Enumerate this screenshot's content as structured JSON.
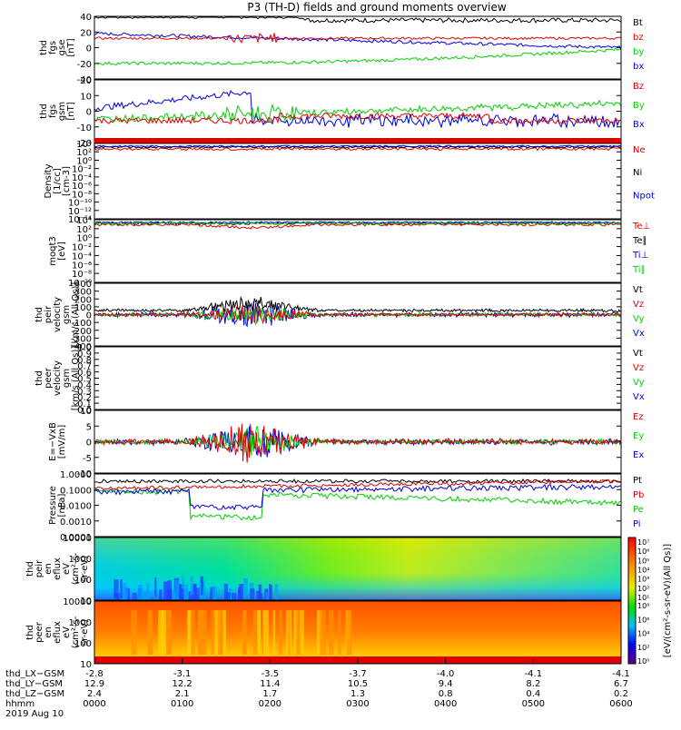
{
  "title": "P3 (TH-D) fields and ground moments overview",
  "colors": {
    "black": "#000000",
    "red": "#e00000",
    "green": "#00d000",
    "blue": "#0000e0"
  },
  "panels": [
    {
      "ylabel": [
        "thd",
        "fgs",
        "gse",
        "[nT]"
      ],
      "ticks": [
        "40",
        "20",
        "0",
        "-20",
        "-40"
      ],
      "ylim": [
        -40,
        40
      ],
      "legend": [
        {
          "label": "Bt",
          "color": "black"
        },
        {
          "label": "bz",
          "color": "red"
        },
        {
          "label": "by",
          "color": "green"
        },
        {
          "label": "bx",
          "color": "blue"
        }
      ]
    },
    {
      "ylabel": [
        "thd",
        "fgs",
        "gsm",
        "[nT]"
      ],
      "ticks": [
        "20",
        "10",
        "0",
        "-10",
        "-20"
      ],
      "ylim": [
        -20,
        20
      ],
      "legend": [
        {
          "label": "Bz",
          "color": "red"
        },
        {
          "label": "By",
          "color": "green"
        },
        {
          "label": "Bx",
          "color": "blue"
        }
      ]
    },
    {
      "ylabel": [
        "Density",
        "[1/cc]",
        "[cm-3]"
      ],
      "ticks": [
        "10⁴",
        "10²",
        "10⁰",
        "10⁻²",
        "10⁻⁴",
        "10⁻⁶",
        "10⁻⁸",
        "10⁻¹⁰",
        "10⁻¹²",
        "10⁻¹⁴"
      ],
      "legend": [
        {
          "label": "Ne",
          "color": "red"
        },
        {
          "label": "Ni",
          "color": "black"
        },
        {
          "label": "Npot",
          "color": "blue"
        }
      ]
    },
    {
      "ylabel": [
        "moqt3",
        "[eV]"
      ],
      "ticks": [
        "10⁴",
        "10²",
        "10⁰",
        "10⁻²",
        "10⁻⁴",
        "10⁻⁶",
        "10⁻⁸",
        "10⁻¹⁰"
      ],
      "legend": [
        {
          "label": "Te⊥",
          "color": "red"
        },
        {
          "label": "Te∥",
          "color": "black"
        },
        {
          "label": "Ti⊥",
          "color": "blue"
        },
        {
          "label": "Ti∥",
          "color": "green"
        }
      ]
    },
    {
      "ylabel": [
        "thd",
        "peir",
        "velocity",
        "gsm",
        "[km/s (All Qs)]"
      ],
      "ticks": [
        "400",
        "300",
        "200",
        "100",
        "0",
        "-100",
        "-200",
        "-300",
        "-400"
      ],
      "ylim": [
        -400,
        400
      ],
      "legend": [
        {
          "label": "Vt",
          "color": "black"
        },
        {
          "label": "Vz",
          "color": "red"
        },
        {
          "label": "Vy",
          "color": "green"
        },
        {
          "label": "Vx",
          "color": "blue"
        }
      ]
    },
    {
      "ylabel": [
        "thd",
        "peer",
        "velocity",
        "gsm",
        "[km/s (All Qs)]"
      ],
      "ticks": [
        "1.0",
        "0.9",
        "0.8",
        "0.7",
        "0.6",
        "0.5",
        "0.4",
        "0.3",
        "0.2",
        "0.1",
        "0.0"
      ],
      "ylim": [
        0,
        1
      ],
      "legend": [
        {
          "label": "Vt",
          "color": "black"
        },
        {
          "label": "Vz",
          "color": "red"
        },
        {
          "label": "Vy",
          "color": "green"
        },
        {
          "label": "Vx",
          "color": "blue"
        }
      ]
    },
    {
      "ylabel": [
        "E=−VxB",
        "[mV/m]"
      ],
      "ticks": [
        "10",
        "5",
        "0",
        "-5",
        "-10"
      ],
      "ylim": [
        -10,
        10
      ],
      "legend": [
        {
          "label": "Ez",
          "color": "red"
        },
        {
          "label": "Ey",
          "color": "green"
        },
        {
          "label": "Ex",
          "color": "blue"
        }
      ]
    },
    {
      "ylabel": [
        "Pressure",
        "[nPa]"
      ],
      "ticks": [
        "1.0000",
        "0.1000",
        "0.0100",
        "0.0010",
        "0.0001"
      ],
      "legend": [
        {
          "label": "Pt",
          "color": "black"
        },
        {
          "label": "Pb",
          "color": "red"
        },
        {
          "label": "Pe",
          "color": "green"
        },
        {
          "label": "Pi",
          "color": "blue"
        }
      ]
    },
    {
      "ylabel": [
        "thd",
        "peir",
        "en",
        "eflux",
        "eV",
        "(cm²-s-",
        "sr-eV)"
      ],
      "ticks": [
        "10000",
        "1000",
        "100",
        "10"
      ]
    },
    {
      "ylabel": [
        "thd",
        "peer",
        "en",
        "eflux",
        "eV",
        "(cm²-s-",
        "sr-eV)"
      ],
      "ticks": [
        "10000",
        "1000",
        "100",
        "10"
      ]
    }
  ],
  "colorbar": {
    "label": "[eV/(cm²-s-sr-eV)(All Qs)]",
    "ticks_top": [
      "10⁷",
      "10⁶",
      "10⁵",
      "10⁴",
      "10³",
      "10²",
      "10¹"
    ],
    "ticks_bottom": [
      "10⁸",
      "10⁶",
      "10⁴",
      "10²",
      "10⁰"
    ]
  },
  "xaxis": {
    "rows": [
      {
        "label": "thd_LX−GSM",
        "values": [
          "-2.8",
          "-3.1",
          "-3.5",
          "-3.7",
          "-4.0",
          "-4.1",
          "-4.1"
        ]
      },
      {
        "label": "thd_LY−GSM",
        "values": [
          "12.9",
          "12.2",
          "11.4",
          "10.5",
          "9.4",
          "8.2",
          "6.7"
        ]
      },
      {
        "label": "thd_LZ−GSM",
        "values": [
          "2.4",
          "2.1",
          "1.7",
          "1.3",
          "0.8",
          "0.4",
          "0.2"
        ]
      },
      {
        "label": "hhmm",
        "values": [
          "0000",
          "0100",
          "0200",
          "0300",
          "0400",
          "0500",
          "0600"
        ]
      }
    ],
    "date": "2019 Aug 10"
  }
}
